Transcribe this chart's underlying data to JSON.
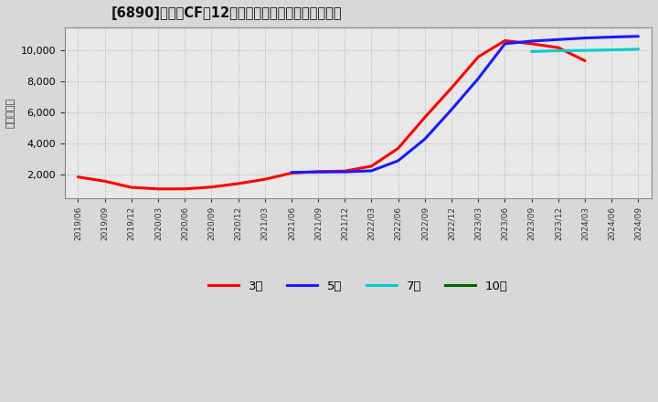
{
  "title": "[6890]　営業CFだ12か月移動合計の標準偏差の推移",
  "ylabel": "（百万円）",
  "background_color": "#d8d8d8",
  "plot_bg_color": "#e8e8e8",
  "ylim_min": 500,
  "ylim_max": 11500,
  "yticks": [
    2000,
    4000,
    6000,
    8000,
    10000
  ],
  "series_3y": {
    "color": "#ff0000",
    "dates": [
      "2019/06",
      "2019/09",
      "2019/12",
      "2020/03",
      "2020/06",
      "2020/09",
      "2020/12",
      "2021/03",
      "2021/06",
      "2021/09",
      "2021/12",
      "2022/03",
      "2022/06",
      "2022/09",
      "2022/12",
      "2023/03",
      "2023/06",
      "2023/09",
      "2023/12",
      "2024/03"
    ],
    "values": [
      1850,
      1580,
      1180,
      1080,
      1080,
      1200,
      1420,
      1700,
      2100,
      2200,
      2230,
      2550,
      3700,
      5700,
      7600,
      9600,
      10650,
      10450,
      10200,
      9350
    ]
  },
  "series_5y": {
    "color": "#1a1aff",
    "dates": [
      "2021/06",
      "2021/09",
      "2021/12",
      "2022/03",
      "2022/06",
      "2022/09",
      "2022/12",
      "2023/03",
      "2023/06",
      "2023/09",
      "2023/12",
      "2024/03",
      "2024/06",
      "2024/09"
    ],
    "values": [
      2150,
      2170,
      2180,
      2250,
      2900,
      4300,
      6200,
      8200,
      10450,
      10620,
      10720,
      10820,
      10880,
      10930
    ]
  },
  "series_7y": {
    "color": "#00cccc",
    "dates": [
      "2023/09",
      "2023/12",
      "2024/03",
      "2024/06",
      "2024/09"
    ],
    "values": [
      9950,
      10000,
      10020,
      10050,
      10100
    ]
  },
  "series_10y": {
    "color": "#006400",
    "dates": [],
    "values": []
  },
  "legend_labels": [
    "3年",
    "5年",
    "7年",
    "10年"
  ],
  "legend_colors": [
    "#ff0000",
    "#1a1aff",
    "#00cccc",
    "#006400"
  ],
  "xticklabels": [
    "2019/06",
    "2019/09",
    "2019/12",
    "2020/03",
    "2020/06",
    "2020/09",
    "2020/12",
    "2021/03",
    "2021/06",
    "2021/09",
    "2021/12",
    "2022/03",
    "2022/06",
    "2022/09",
    "2022/12",
    "2023/03",
    "2023/06",
    "2023/09",
    "2023/12",
    "2024/03",
    "2024/06",
    "2024/09"
  ]
}
